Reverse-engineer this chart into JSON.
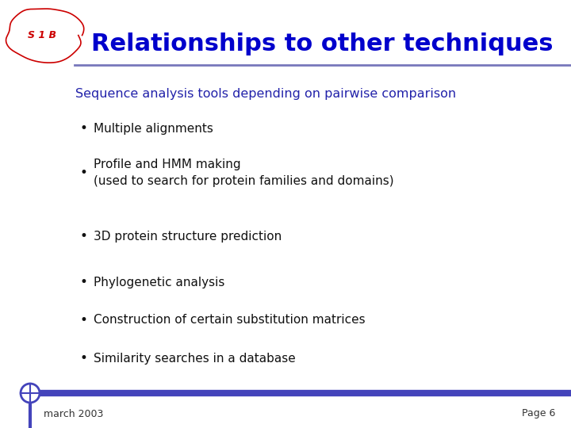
{
  "title": "Relationships to other techniques",
  "title_color": "#0000CC",
  "title_fontsize": 22,
  "subtitle": "Sequence analysis tools depending on pairwise comparison",
  "subtitle_color": "#2222AA",
  "subtitle_fontsize": 11.5,
  "bullet_color": "#111111",
  "bullet_fontsize": 11,
  "bullets": [
    "Multiple alignments",
    "Profile and HMM making\n(used to search for protein families and domains)",
    "3D protein structure prediction",
    "Phylogenetic analysis",
    "Construction of certain substitution matrices",
    "Similarity searches in a database"
  ],
  "footer_left": "march 2003",
  "footer_right": "Page 6",
  "footer_color": "#333333",
  "footer_fontsize": 9,
  "bg_color": "#ffffff",
  "header_line_color": "#7777BB",
  "footer_line_color": "#4444BB",
  "logo_color": "#CC0000"
}
